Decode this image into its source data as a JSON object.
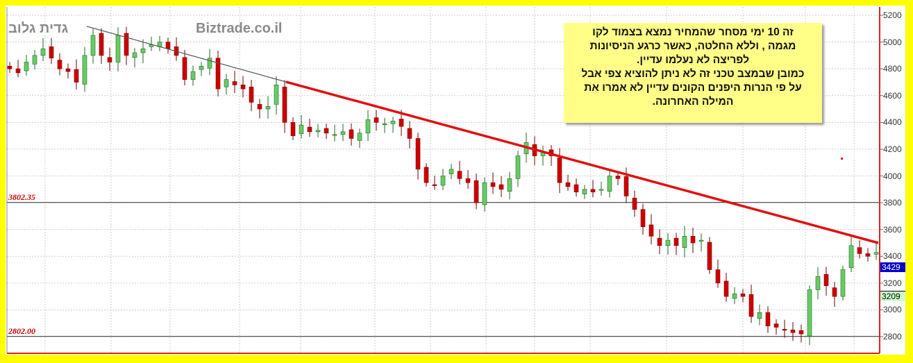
{
  "chart_data": {
    "type": "candlestick",
    "title": "",
    "watermarks": [
      "גדית גלוב",
      "Biztrade.co.il"
    ],
    "ylim": [
      2700,
      5250
    ],
    "yticks": [
      5200,
      5000,
      4800,
      4600,
      4400,
      4200,
      4000,
      3800,
      3600,
      3400,
      3200,
      3000,
      2800
    ],
    "grid": true,
    "closes": [
      4800,
      4770,
      4850,
      4900,
      4950,
      4880,
      4800,
      4780,
      4700,
      4900,
      5050,
      4900,
      4850,
      5050,
      4900,
      4920,
      4950,
      4980,
      5000,
      4950,
      4900,
      4720,
      4780,
      4820,
      4880,
      4650,
      4720,
      4680,
      4650,
      4550,
      4500,
      4520,
      4680,
      4400,
      4300,
      4380,
      4330,
      4340,
      4320,
      4310,
      4330,
      4280,
      4320,
      4420,
      4400,
      4390,
      4410,
      4370,
      4280,
      4050,
      3950,
      3930,
      4000,
      4050,
      3980,
      3950,
      3800,
      3950,
      3920,
      3900,
      3980,
      4150,
      4250,
      4150,
      4180,
      4150,
      3950,
      3920,
      3880,
      3900,
      3880,
      3900,
      4000,
      3980,
      3850,
      3750,
      3620,
      3550,
      3480,
      3520,
      3480,
      3550,
      3500,
      3520,
      3300,
      3200,
      3100,
      3120,
      3100,
      2950,
      2980,
      2880,
      2870,
      2850,
      2830,
      2820,
      3150,
      3250,
      3180,
      3100,
      3300,
      3480,
      3420,
      3400,
      3429
    ],
    "horizontal_levels": [
      {
        "label": "3802.35",
        "value": 3802.35
      },
      {
        "label": "2802.00",
        "value": 2802.0
      }
    ],
    "price_tags": [
      {
        "label": "3429",
        "value": 3429,
        "color": "#0000cc"
      },
      {
        "label": "3209",
        "value": 3209,
        "color": "#ccffcc"
      }
    ],
    "colors": {
      "up": "#66cc66",
      "down": "#cc0000",
      "trendline_main": "#e01010",
      "trendline_old": "#555555",
      "background": "#ffff00"
    }
  },
  "note": {
    "lines": [
      "זה 10 ימי מסחר  שהמחיר  נמצא  בצמוד  לקו",
      "מגמה , וללא  החלטה, כאשר  כרגע  הניסיונות",
      "לפריצה  לא  נעלמו עדיין.",
      "כמובן שבמצב  טכני זה לא ניתן להוציא  צפי אבל",
      "על פי הנרות היפנים  הקונים עדיין לא  אמרו את",
      "המילה  האחרונה."
    ]
  }
}
